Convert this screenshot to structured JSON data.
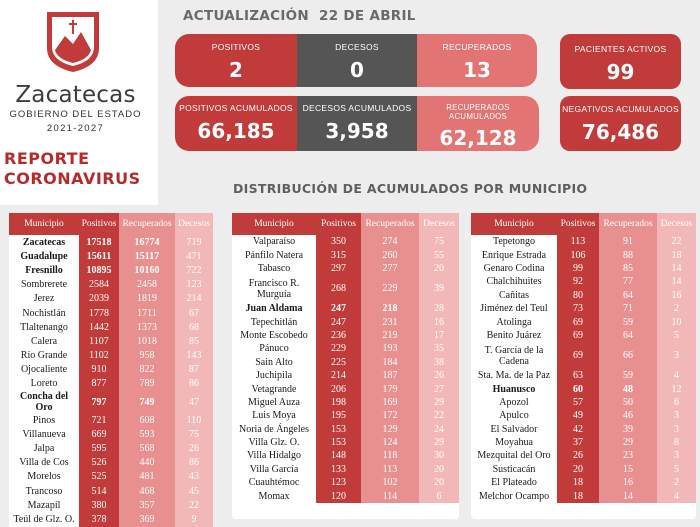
{
  "brand": {
    "name": "Zacatecas",
    "subtitle": "GOBIERNO DEL ESTADO",
    "years": "2021-2027",
    "report_line1": "REPORTE",
    "report_line2": "CORONAVIRUS"
  },
  "header": {
    "label": "ACTUALIZACIÓN",
    "date": "22 DE ABRIL"
  },
  "daily": {
    "positivos": {
      "label": "POSITIVOS",
      "value": "2"
    },
    "decesos": {
      "label": "DECESOS",
      "value": "0"
    },
    "recuperados": {
      "label": "RECUPERADOS",
      "value": "13"
    },
    "activos": {
      "label": "PACIENTES ACTIVOS",
      "value": "99"
    }
  },
  "cumulative": {
    "positivos": {
      "label": "POSITIVOS ACUMULADOS",
      "value": "66,185"
    },
    "decesos": {
      "label": "DECESOS ACUMULADOS",
      "value": "3,958"
    },
    "recuperados": {
      "label": "RECUPERADOS ACUMULADOS",
      "value": "62,128"
    },
    "negativos": {
      "label": "NEGATIVOS ACUMULADOS",
      "value": "76,486"
    }
  },
  "colors": {
    "red": "#c23b3b",
    "mid": "#e89090",
    "light": "#f2b8b8",
    "dark": "#555555"
  },
  "distribution_title": "DISTRIBUCIÓN DE ACUMULADOS POR MUNICIPIO",
  "table_headers": [
    "Municipio",
    "Positivos",
    "Recuperados",
    "Decesos"
  ],
  "table1": [
    [
      "Zacatecas",
      "17518",
      "16774",
      "719"
    ],
    [
      "Guadalupe",
      "15611",
      "15117",
      "471"
    ],
    [
      "Fresnillo",
      "10895",
      "10160",
      "722"
    ],
    [
      "Sombrerete",
      "2584",
      "2458",
      "123"
    ],
    [
      "Jerez",
      "2039",
      "1819",
      "214"
    ],
    [
      "Nochistlán",
      "1778",
      "1711",
      "67"
    ],
    [
      "Tlaltenango",
      "1442",
      "1373",
      "68"
    ],
    [
      "Calera",
      "1107",
      "1018",
      "85"
    ],
    [
      "Río Grande",
      "1102",
      "958",
      "143"
    ],
    [
      "Ojocaliente",
      "910",
      "822",
      "87"
    ],
    [
      "Loreto",
      "877",
      "789",
      "86"
    ],
    [
      "Concha del Oro",
      "797",
      "749",
      "47"
    ],
    [
      "Pinos",
      "721",
      "608",
      "110"
    ],
    [
      "Villanueva",
      "669",
      "593",
      "75"
    ],
    [
      "Jalpa",
      "595",
      "568",
      "26"
    ],
    [
      "Villa de Cos",
      "526",
      "440",
      "86"
    ],
    [
      "Morelos",
      "525",
      "481",
      "43"
    ],
    [
      "Trancoso",
      "514",
      "468",
      "45"
    ],
    [
      "Mazapil",
      "380",
      "357",
      "22"
    ],
    [
      "Teúl de Glz. O.",
      "378",
      "369",
      "9"
    ]
  ],
  "table2": [
    [
      "Valparaíso",
      "350",
      "274",
      "75"
    ],
    [
      "Pánfilo Natera",
      "315",
      "260",
      "55"
    ],
    [
      "Tabasco",
      "297",
      "277",
      "20"
    ],
    [
      "Francisco R. Murguía",
      "268",
      "229",
      "39"
    ],
    [
      "Juan Aldama",
      "247",
      "218",
      "28"
    ],
    [
      "Tepechitlán",
      "247",
      "231",
      "16"
    ],
    [
      "Monte Escobedo",
      "236",
      "219",
      "17"
    ],
    [
      "Pánuco",
      "229",
      "193",
      "35"
    ],
    [
      "Sain Alto",
      "225",
      "184",
      "38"
    ],
    [
      "Juchipila",
      "214",
      "187",
      "26"
    ],
    [
      "Vetagrande",
      "206",
      "179",
      "27"
    ],
    [
      "Miguel Auza",
      "198",
      "169",
      "29"
    ],
    [
      "Luis Moya",
      "195",
      "172",
      "22"
    ],
    [
      "Noria de Ángeles",
      "153",
      "129",
      "24"
    ],
    [
      "Villa Glz. O.",
      "153",
      "124",
      "29"
    ],
    [
      "Villa Hidalgo",
      "148",
      "118",
      "30"
    ],
    [
      "Villa García",
      "133",
      "113",
      "20"
    ],
    [
      "Cuauhtémoc",
      "123",
      "102",
      "20"
    ],
    [
      "Momax",
      "120",
      "114",
      "6"
    ]
  ],
  "table3": [
    [
      "Tepetongo",
      "113",
      "91",
      "22"
    ],
    [
      "Enrique Estrada",
      "106",
      "88",
      "18"
    ],
    [
      "Genaro Codina",
      "99",
      "85",
      "14"
    ],
    [
      "Chalchihuites",
      "92",
      "77",
      "14"
    ],
    [
      "Cañitas",
      "80",
      "64",
      "16"
    ],
    [
      "Jiménez del Teul",
      "73",
      "71",
      "2"
    ],
    [
      "Atolinga",
      "69",
      "59",
      "10"
    ],
    [
      "Benito Juárez",
      "69",
      "64",
      "5"
    ],
    [
      "T. García de la Cadena",
      "69",
      "66",
      "3"
    ],
    [
      "Sta. Ma. de la Paz",
      "63",
      "59",
      "4"
    ],
    [
      "Huanusco",
      "60",
      "48",
      "12"
    ],
    [
      "Apozol",
      "57",
      "50",
      "6"
    ],
    [
      "Apulco",
      "49",
      "46",
      "3"
    ],
    [
      "El Salvador",
      "42",
      "39",
      "3"
    ],
    [
      "Moyahua",
      "37",
      "29",
      "8"
    ],
    [
      "Mezquital del Oro",
      "26",
      "23",
      "3"
    ],
    [
      "Susticacán",
      "20",
      "15",
      "5"
    ],
    [
      "El Plateado",
      "18",
      "16",
      "2"
    ],
    [
      "Melchor Ocampo",
      "18",
      "14",
      "4"
    ]
  ]
}
